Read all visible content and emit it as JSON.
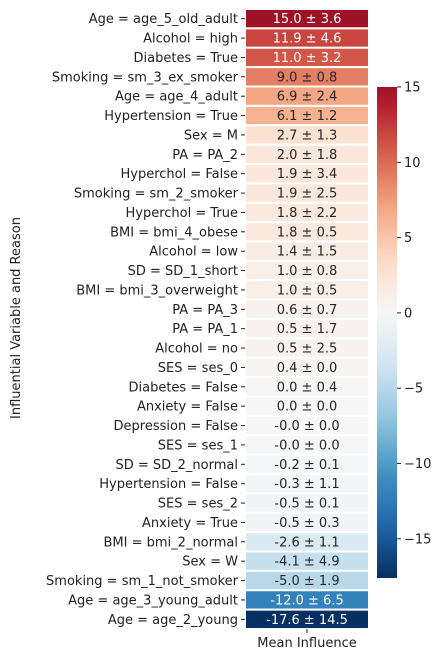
{
  "chart_data": {
    "type": "heatmap",
    "xlabel": "Mean Influence",
    "ylabel": "Influential Variable and Reason",
    "rows": [
      {
        "label": "Age = age_5_old_adult",
        "value": 15.0,
        "annotation": "15.0 ± 3.6"
      },
      {
        "label": "Alcohol = high",
        "value": 11.9,
        "annotation": "11.9 ± 4.6"
      },
      {
        "label": "Diabetes = True",
        "value": 11.0,
        "annotation": "11.0 ± 3.2"
      },
      {
        "label": "Smoking = sm_3_ex_smoker",
        "value": 9.0,
        "annotation": "9.0 ± 0.8"
      },
      {
        "label": "Age = age_4_adult",
        "value": 6.9,
        "annotation": "6.9 ± 2.4"
      },
      {
        "label": "Hypertension = True",
        "value": 6.1,
        "annotation": "6.1 ± 1.2"
      },
      {
        "label": "Sex = M",
        "value": 2.7,
        "annotation": "2.7 ± 1.3"
      },
      {
        "label": "PA = PA_2",
        "value": 2.0,
        "annotation": "2.0 ± 1.8"
      },
      {
        "label": "Hyperchol = False",
        "value": 1.9,
        "annotation": "1.9 ± 3.4"
      },
      {
        "label": "Smoking = sm_2_smoker",
        "value": 1.9,
        "annotation": "1.9 ± 2.5"
      },
      {
        "label": "Hyperchol = True",
        "value": 1.8,
        "annotation": "1.8 ± 2.2"
      },
      {
        "label": "BMI = bmi_4_obese",
        "value": 1.8,
        "annotation": "1.8 ± 0.5"
      },
      {
        "label": "Alcohol = low",
        "value": 1.4,
        "annotation": "1.4 ± 1.5"
      },
      {
        "label": "SD = SD_1_short",
        "value": 1.0,
        "annotation": "1.0 ± 0.8"
      },
      {
        "label": "BMI = bmi_3_overweight",
        "value": 1.0,
        "annotation": "1.0 ± 0.5"
      },
      {
        "label": "PA = PA_3",
        "value": 0.6,
        "annotation": "0.6 ± 0.7"
      },
      {
        "label": "PA = PA_1",
        "value": 0.5,
        "annotation": "0.5 ± 1.7"
      },
      {
        "label": "Alcohol = no",
        "value": 0.5,
        "annotation": "0.5 ± 2.5"
      },
      {
        "label": "SES = ses_0",
        "value": 0.4,
        "annotation": "0.4 ± 0.0"
      },
      {
        "label": "Diabetes = False",
        "value": 0.0,
        "annotation": "0.0 ± 0.4"
      },
      {
        "label": "Anxiety = False",
        "value": 0.0,
        "annotation": "0.0 ± 0.0"
      },
      {
        "label": "Depression = False",
        "value": -0.0,
        "annotation": "-0.0 ± 0.0"
      },
      {
        "label": "SES = ses_1",
        "value": -0.0,
        "annotation": "-0.0 ± 0.0"
      },
      {
        "label": "SD = SD_2_normal",
        "value": -0.2,
        "annotation": "-0.2 ± 0.1"
      },
      {
        "label": "Hypertension = False",
        "value": -0.3,
        "annotation": "-0.3 ± 1.1"
      },
      {
        "label": "SES = ses_2",
        "value": -0.5,
        "annotation": "-0.5 ± 0.1"
      },
      {
        "label": "Anxiety = True",
        "value": -0.5,
        "annotation": "-0.5 ± 0.3"
      },
      {
        "label": "BMI = bmi_2_normal",
        "value": -2.6,
        "annotation": "-2.6 ± 1.1"
      },
      {
        "label": "Sex = W",
        "value": -4.1,
        "annotation": "-4.1 ± 4.9"
      },
      {
        "label": "Smoking = sm_1_not_smoker",
        "value": -5.0,
        "annotation": "-5.0 ± 1.9"
      },
      {
        "label": "Age = age_3_young_adult",
        "value": -12.0,
        "annotation": "-12.0 ± 6.5"
      },
      {
        "label": "Age = age_2_young",
        "value": -17.6,
        "annotation": "-17.6 ± 14.5"
      }
    ],
    "colorbar": {
      "colormap": "RdBu_r",
      "vmin": -17.6,
      "vmax": 15.0,
      "center": 0,
      "ticks": [
        15,
        10,
        5,
        0,
        -5,
        -10,
        -15
      ],
      "tick_labels": [
        "15",
        "10",
        "5",
        "0",
        "−5",
        "−10",
        "−15"
      ]
    }
  }
}
